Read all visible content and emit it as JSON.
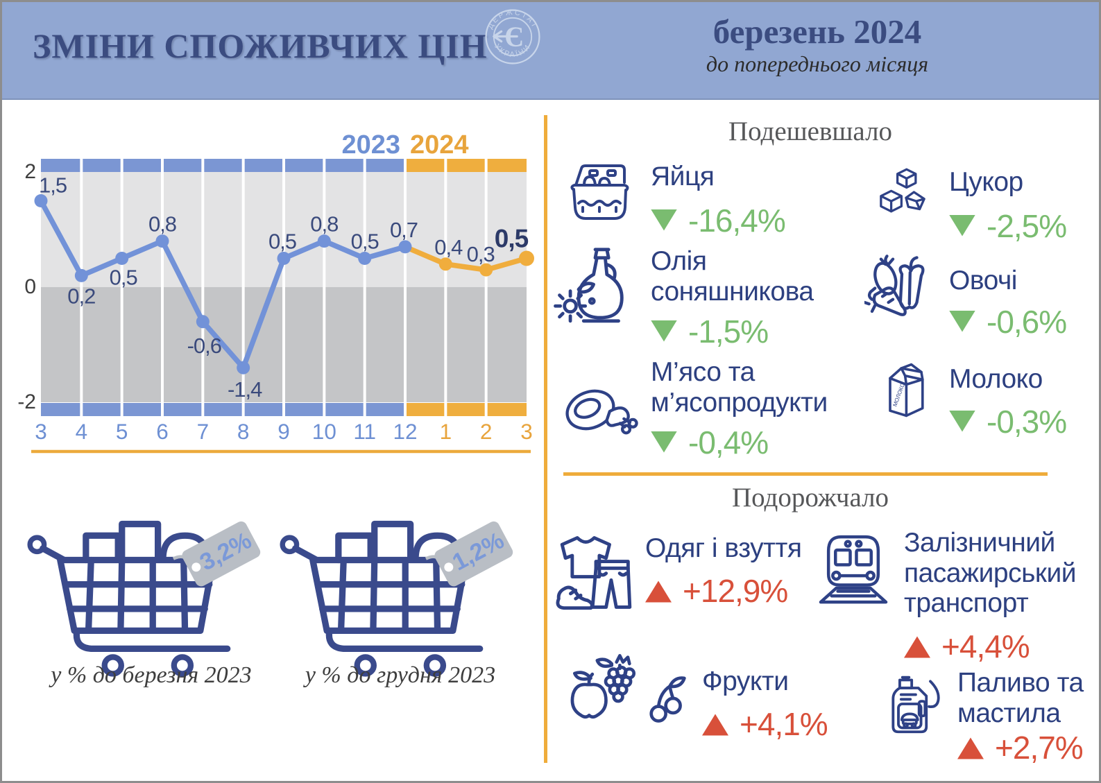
{
  "header": {
    "title": "ЗМІНИ СПОЖИВЧИХ ЦІН",
    "period": "березень 2024",
    "period_note": "до попереднього місяця",
    "logo": {
      "top": "ДЕРЖСТАТ",
      "bottom": "УКРАЇНИ",
      "glyph": "Є"
    }
  },
  "chart_data": {
    "type": "line",
    "title": "Зміни споживчих цін, % до попереднього місяця",
    "x_tick_labels": [
      "3",
      "4",
      "5",
      "6",
      "7",
      "8",
      "9",
      "10",
      "11",
      "12",
      "1",
      "2",
      "3"
    ],
    "values": [
      1.5,
      0.2,
      0.5,
      0.8,
      -0.6,
      -1.4,
      0.5,
      0.8,
      0.5,
      0.7,
      0.4,
      0.3,
      0.5
    ],
    "point_labels": [
      "1,5",
      "0,2",
      "0,5",
      "0,8",
      "-0,6",
      "-1,4",
      "0,5",
      "0,8",
      "0,5",
      "0,7",
      "0,4",
      "0,3",
      "0,5"
    ],
    "legend": {
      "left": "2023",
      "right": "2024"
    },
    "split_index": 9,
    "ylim": [
      -2,
      2
    ],
    "yticks": [
      "2",
      "0",
      "-2"
    ],
    "grid": "vertical-white",
    "colors": {
      "series2023": "#7292d8",
      "series2024": "#f0ad3d",
      "band2023": "#7b96d3",
      "band2024": "#efae3e",
      "bg_upper": "#e3e3e4",
      "bg_lower": "#c4c5c7",
      "label": "#3a4a7c",
      "label_bold": "#2c3a68",
      "xtick2023": "#6e90d3",
      "xtick2024": "#e8a43c",
      "ytick": "#3e3e3e",
      "underline": "#ecaa3c"
    }
  },
  "carts": [
    {
      "tag": "3,2%",
      "caption": "у % до березня 2023"
    },
    {
      "tag": "1,2%",
      "caption": "у % до грудня 2023"
    }
  ],
  "cheaper": {
    "title": "Подешевшало",
    "items": [
      {
        "name": "Яйця",
        "value": "-16,4%",
        "icon": "eggs"
      },
      {
        "name": "Цукор",
        "value": "-2,5%",
        "icon": "sugar"
      },
      {
        "name": "Олія\nсоняшникова",
        "value": "-1,5%",
        "icon": "oil"
      },
      {
        "name": "Овочі",
        "value": "-0,6%",
        "icon": "vegetables"
      },
      {
        "name": "М’ясо та\nм’ясопродукти",
        "value": "-0,4%",
        "icon": "meat"
      },
      {
        "name": "Молоко",
        "value": "-0,3%",
        "icon": "milk",
        "icon_label": "МОЛОКО"
      }
    ]
  },
  "pricier": {
    "title": "Подорожчало",
    "items": [
      {
        "name": "Одяг і взуття",
        "value": "+12,9%",
        "icon": "clothes"
      },
      {
        "name": "Залізничний\nпасажирський\nтранспорт",
        "value": "+4,4%",
        "icon": "train"
      },
      {
        "name": "Фрукти",
        "value": "+4,1%",
        "icon": "fruits"
      },
      {
        "name": "Паливо та\nмастила",
        "value": "+2,7%",
        "icon": "fuel"
      }
    ]
  },
  "colors": {
    "header_bg": "#91a7d2",
    "navy": "#3b4c80",
    "item_navy": "#2d4080",
    "green": "#7abc70",
    "red": "#d8503a",
    "accent_orange": "#efac3b",
    "tag_gray": "#b9bec5",
    "tag_text": "#7b99d8",
    "section_title": "#565759"
  }
}
